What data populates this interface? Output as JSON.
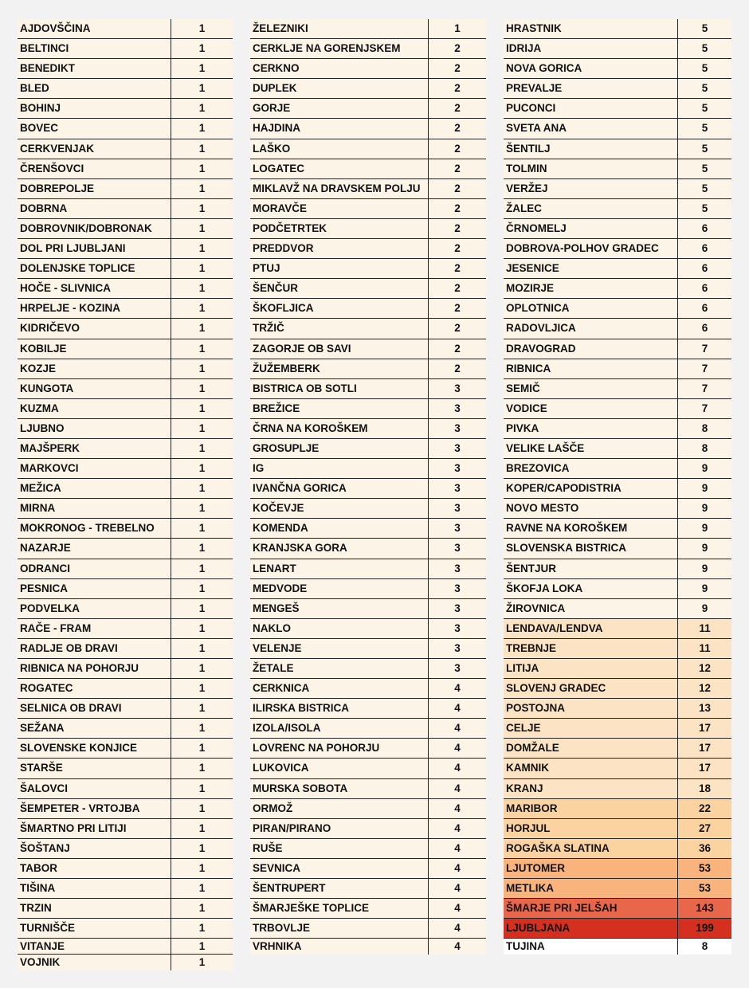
{
  "default_fill": "#fdf4e8",
  "columns": [
    {
      "rows": [
        {
          "name": "AJDOVŠČINA",
          "count": "1"
        },
        {
          "name": "BELTINCI",
          "count": "1"
        },
        {
          "name": "BENEDIKT",
          "count": "1"
        },
        {
          "name": "BLED",
          "count": "1"
        },
        {
          "name": "BOHINJ",
          "count": "1"
        },
        {
          "name": "BOVEC",
          "count": "1"
        },
        {
          "name": "CERKVENJAK",
          "count": "1"
        },
        {
          "name": "ČRENŠOVCI",
          "count": "1"
        },
        {
          "name": "DOBREPOLJE",
          "count": "1"
        },
        {
          "name": "DOBRNA",
          "count": "1"
        },
        {
          "name": "DOBROVNIK/DOBRONAK",
          "count": "1"
        },
        {
          "name": "DOL PRI LJUBLJANI",
          "count": "1"
        },
        {
          "name": "DOLENJSKE TOPLICE",
          "count": "1"
        },
        {
          "name": "HOČE - SLIVNICA",
          "count": "1"
        },
        {
          "name": "HRPELJE - KOZINA",
          "count": "1"
        },
        {
          "name": "KIDRIČEVO",
          "count": "1"
        },
        {
          "name": "KOBILJE",
          "count": "1"
        },
        {
          "name": "KOZJE",
          "count": "1"
        },
        {
          "name": "KUNGOTA",
          "count": "1"
        },
        {
          "name": "KUZMA",
          "count": "1"
        },
        {
          "name": "LJUBNO",
          "count": "1"
        },
        {
          "name": "MAJŠPERK",
          "count": "1"
        },
        {
          "name": "MARKOVCI",
          "count": "1"
        },
        {
          "name": "MEŽICA",
          "count": "1"
        },
        {
          "name": "MIRNA",
          "count": "1"
        },
        {
          "name": "MOKRONOG - TREBELNO",
          "count": "1"
        },
        {
          "name": "NAZARJE",
          "count": "1"
        },
        {
          "name": "ODRANCI",
          "count": "1"
        },
        {
          "name": "PESNICA",
          "count": "1"
        },
        {
          "name": "PODVELKA",
          "count": "1"
        },
        {
          "name": "RAČE - FRAM",
          "count": "1"
        },
        {
          "name": "RADLJE OB DRAVI",
          "count": "1"
        },
        {
          "name": "RIBNICA NA POHORJU",
          "count": "1"
        },
        {
          "name": "ROGATEC",
          "count": "1"
        },
        {
          "name": "SELNICA OB DRAVI",
          "count": "1"
        },
        {
          "name": "SEŽANA",
          "count": "1"
        },
        {
          "name": "SLOVENSKE KONJICE",
          "count": "1"
        },
        {
          "name": "STARŠE",
          "count": "1"
        },
        {
          "name": "ŠALOVCI",
          "count": "1"
        },
        {
          "name": "ŠEMPETER - VRTOJBA",
          "count": "1"
        },
        {
          "name": "ŠMARTNO PRI LITIJI",
          "count": "1"
        },
        {
          "name": "ŠOŠTANJ",
          "count": "1"
        },
        {
          "name": "TABOR",
          "count": "1"
        },
        {
          "name": "TIŠINA",
          "count": "1"
        },
        {
          "name": "TRZIN",
          "count": "1"
        },
        {
          "name": "TURNIŠČE",
          "count": "1"
        },
        {
          "name": "VITANJE",
          "count": "1"
        },
        {
          "name": "VOJNIK",
          "count": "1"
        }
      ]
    },
    {
      "rows": [
        {
          "name": "ŽELEZNIKI",
          "count": "1"
        },
        {
          "name": "CERKLJE NA GORENJSKEM",
          "count": "2"
        },
        {
          "name": "CERKNO",
          "count": "2"
        },
        {
          "name": "DUPLEK",
          "count": "2"
        },
        {
          "name": "GORJE",
          "count": "2"
        },
        {
          "name": "HAJDINA",
          "count": "2"
        },
        {
          "name": "LAŠKO",
          "count": "2"
        },
        {
          "name": "LOGATEC",
          "count": "2"
        },
        {
          "name": "MIKLAVŽ NA DRAVSKEM POLJU",
          "count": "2"
        },
        {
          "name": "MORAVČE",
          "count": "2"
        },
        {
          "name": "PODČETRTEK",
          "count": "2"
        },
        {
          "name": "PREDDVOR",
          "count": "2"
        },
        {
          "name": "PTUJ",
          "count": "2"
        },
        {
          "name": "ŠENČUR",
          "count": "2"
        },
        {
          "name": "ŠKOFLJICA",
          "count": "2"
        },
        {
          "name": "TRŽIČ",
          "count": "2"
        },
        {
          "name": "ZAGORJE OB SAVI",
          "count": "2"
        },
        {
          "name": "ŽUŽEMBERK",
          "count": "2"
        },
        {
          "name": "BISTRICA OB SOTLI",
          "count": "3"
        },
        {
          "name": "BREŽICE",
          "count": "3"
        },
        {
          "name": "ČRNA NA KOROŠKEM",
          "count": "3"
        },
        {
          "name": "GROSUPLJE",
          "count": "3"
        },
        {
          "name": "IG",
          "count": "3"
        },
        {
          "name": "IVANČNA GORICA",
          "count": "3"
        },
        {
          "name": "KOČEVJE",
          "count": "3"
        },
        {
          "name": "KOMENDA",
          "count": "3"
        },
        {
          "name": "KRANJSKA GORA",
          "count": "3"
        },
        {
          "name": "LENART",
          "count": "3"
        },
        {
          "name": "MEDVODE",
          "count": "3"
        },
        {
          "name": "MENGEŠ",
          "count": "3"
        },
        {
          "name": "NAKLO",
          "count": "3"
        },
        {
          "name": "VELENJE",
          "count": "3"
        },
        {
          "name": "ŽETALE",
          "count": "3"
        },
        {
          "name": "CERKNICA",
          "count": "4"
        },
        {
          "name": "ILIRSKA BISTRICA",
          "count": "4"
        },
        {
          "name": "IZOLA/ISOLA",
          "count": "4"
        },
        {
          "name": "LOVRENC NA POHORJU",
          "count": "4"
        },
        {
          "name": "LUKOVICA",
          "count": "4"
        },
        {
          "name": "MURSKA SOBOTA",
          "count": "4"
        },
        {
          "name": "ORMOŽ",
          "count": "4"
        },
        {
          "name": "PIRAN/PIRANO",
          "count": "4"
        },
        {
          "name": "RUŠE",
          "count": "4"
        },
        {
          "name": "SEVNICA",
          "count": "4"
        },
        {
          "name": "ŠENTRUPERT",
          "count": "4"
        },
        {
          "name": "ŠMARJEŠKE TOPLICE",
          "count": "4"
        },
        {
          "name": "TRBOVLJE",
          "count": "4"
        },
        {
          "name": "VRHNIKA",
          "count": "4"
        }
      ]
    },
    {
      "rows": [
        {
          "name": "HRASTNIK",
          "count": "5"
        },
        {
          "name": "IDRIJA",
          "count": "5"
        },
        {
          "name": "NOVA GORICA",
          "count": "5"
        },
        {
          "name": "PREVALJE",
          "count": "5"
        },
        {
          "name": "PUCONCI",
          "count": "5"
        },
        {
          "name": "SVETA ANA",
          "count": "5"
        },
        {
          "name": "ŠENTILJ",
          "count": "5"
        },
        {
          "name": "TOLMIN",
          "count": "5"
        },
        {
          "name": "VERŽEJ",
          "count": "5"
        },
        {
          "name": "ŽALEC",
          "count": "5"
        },
        {
          "name": "ČRNOMELJ",
          "count": "6"
        },
        {
          "name": "DOBROVA-POLHOV GRADEC",
          "count": "6"
        },
        {
          "name": "JESENICE",
          "count": "6"
        },
        {
          "name": "MOZIRJE",
          "count": "6"
        },
        {
          "name": "OPLOTNICA",
          "count": "6"
        },
        {
          "name": "RADOVLJICA",
          "count": "6"
        },
        {
          "name": "DRAVOGRAD",
          "count": "7"
        },
        {
          "name": "RIBNICA",
          "count": "7"
        },
        {
          "name": "SEMIČ",
          "count": "7"
        },
        {
          "name": "VODICE",
          "count": "7"
        },
        {
          "name": "PIVKA",
          "count": "8"
        },
        {
          "name": "VELIKE LAŠČE",
          "count": "8"
        },
        {
          "name": "BREZOVICA",
          "count": "9"
        },
        {
          "name": "KOPER/CAPODISTRIA",
          "count": "9"
        },
        {
          "name": "NOVO MESTO",
          "count": "9"
        },
        {
          "name": "RAVNE NA KOROŠKEM",
          "count": "9"
        },
        {
          "name": "SLOVENSKA BISTRICA",
          "count": "9"
        },
        {
          "name": "ŠENTJUR",
          "count": "9"
        },
        {
          "name": "ŠKOFJA LOKA",
          "count": "9"
        },
        {
          "name": "ŽIROVNICA",
          "count": "9"
        },
        {
          "name": "LENDAVA/LENDVA",
          "count": "11",
          "fill": "#fce3c3"
        },
        {
          "name": "TREBNJE",
          "count": "11",
          "fill": "#fce3c3"
        },
        {
          "name": "LITIJA",
          "count": "12",
          "fill": "#fce3c3"
        },
        {
          "name": "SLOVENJ GRADEC",
          "count": "12",
          "fill": "#fce3c3"
        },
        {
          "name": "POSTOJNA",
          "count": "13",
          "fill": "#fce3c3"
        },
        {
          "name": "CELJE",
          "count": "17",
          "fill": "#fce3c3"
        },
        {
          "name": "DOMŽALE",
          "count": "17",
          "fill": "#fce3c3"
        },
        {
          "name": "KAMNIK",
          "count": "17",
          "fill": "#fce3c3"
        },
        {
          "name": "KRANJ",
          "count": "18",
          "fill": "#fce3c3"
        },
        {
          "name": "MARIBOR",
          "count": "22",
          "fill": "#fbd3a0"
        },
        {
          "name": "HORJUL",
          "count": "27",
          "fill": "#fbd3a0"
        },
        {
          "name": "ROGAŠKA SLATINA",
          "count": "36",
          "fill": "#fbd3a0"
        },
        {
          "name": "LJUTOMER",
          "count": "53",
          "fill": "#f9b47e"
        },
        {
          "name": "METLIKA",
          "count": "53",
          "fill": "#f9b47e"
        },
        {
          "name": "ŠMARJE PRI JELŠAH",
          "count": "143",
          "fill": "#e8674b"
        },
        {
          "name": "LJUBLJANA",
          "count": "199",
          "fill": "#d5301f"
        },
        {
          "name": "TUJINA",
          "count": "8",
          "fill": "#ffffff"
        }
      ]
    }
  ]
}
